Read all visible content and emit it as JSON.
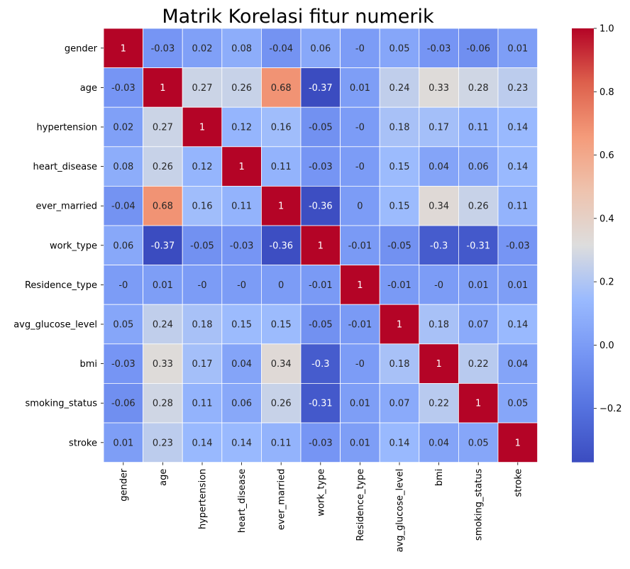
{
  "chart_data": {
    "type": "heatmap",
    "title": "Matrik Korelasi fitur numerik",
    "xlabel": "",
    "ylabel": "",
    "labels": [
      "gender",
      "age",
      "hypertension",
      "heart_disease",
      "ever_married",
      "work_type",
      "Residence_type",
      "avg_glucose_level",
      "bmi",
      "smoking_status",
      "stroke"
    ],
    "matrix": [
      [
        1,
        -0.03,
        0.02,
        0.08,
        -0.04,
        0.06,
        0,
        0.05,
        -0.03,
        -0.06,
        0.01
      ],
      [
        -0.03,
        1,
        0.27,
        0.26,
        0.68,
        -0.37,
        0.01,
        0.24,
        0.33,
        0.28,
        0.23
      ],
      [
        0.02,
        0.27,
        1,
        0.12,
        0.16,
        -0.05,
        0,
        0.18,
        0.17,
        0.11,
        0.14
      ],
      [
        0.08,
        0.26,
        0.12,
        1,
        0.11,
        -0.03,
        0,
        0.15,
        0.04,
        0.06,
        0.14
      ],
      [
        -0.04,
        0.68,
        0.16,
        0.11,
        1,
        -0.36,
        0,
        0.15,
        0.34,
        0.26,
        0.11
      ],
      [
        0.06,
        -0.37,
        -0.05,
        -0.03,
        -0.36,
        1,
        -0.01,
        -0.05,
        -0.3,
        -0.31,
        -0.03
      ],
      [
        0,
        0.01,
        0,
        0,
        0,
        -0.01,
        1,
        -0.01,
        0,
        0.01,
        0.01
      ],
      [
        0.05,
        0.24,
        0.18,
        0.15,
        0.15,
        -0.05,
        -0.01,
        1,
        0.18,
        0.07,
        0.14
      ],
      [
        -0.03,
        0.33,
        0.17,
        0.04,
        0.34,
        -0.3,
        0,
        0.18,
        1,
        0.22,
        0.04
      ],
      [
        -0.06,
        0.28,
        0.11,
        0.06,
        0.26,
        -0.31,
        0.01,
        0.07,
        0.22,
        1,
        0.05
      ],
      [
        0.01,
        0.23,
        0.14,
        0.14,
        0.11,
        -0.03,
        0.01,
        0.14,
        0.04,
        0.05,
        1
      ]
    ],
    "display_labels": [
      [
        "1",
        "-0.03",
        "0.02",
        "0.08",
        "-0.04",
        "0.06",
        "-0",
        "0.05",
        "-0.03",
        "-0.06",
        "0.01"
      ],
      [
        "-0.03",
        "1",
        "0.27",
        "0.26",
        "0.68",
        "-0.37",
        "0.01",
        "0.24",
        "0.33",
        "0.28",
        "0.23"
      ],
      [
        "0.02",
        "0.27",
        "1",
        "0.12",
        "0.16",
        "-0.05",
        "-0",
        "0.18",
        "0.17",
        "0.11",
        "0.14"
      ],
      [
        "0.08",
        "0.26",
        "0.12",
        "1",
        "0.11",
        "-0.03",
        "-0",
        "0.15",
        "0.04",
        "0.06",
        "0.14"
      ],
      [
        "-0.04",
        "0.68",
        "0.16",
        "0.11",
        "1",
        "-0.36",
        "0",
        "0.15",
        "0.34",
        "0.26",
        "0.11"
      ],
      [
        "0.06",
        "-0.37",
        "-0.05",
        "-0.03",
        "-0.36",
        "1",
        "-0.01",
        "-0.05",
        "-0.3",
        "-0.31",
        "-0.03"
      ],
      [
        "-0",
        "0.01",
        "-0",
        "-0",
        "0",
        "-0.01",
        "1",
        "-0.01",
        "-0",
        "0.01",
        "0.01"
      ],
      [
        "0.05",
        "0.24",
        "0.18",
        "0.15",
        "0.15",
        "-0.05",
        "-0.01",
        "1",
        "0.18",
        "0.07",
        "0.14"
      ],
      [
        "-0.03",
        "0.33",
        "0.17",
        "0.04",
        "0.34",
        "-0.3",
        "-0",
        "0.18",
        "1",
        "0.22",
        "0.04"
      ],
      [
        "-0.06",
        "0.28",
        "0.11",
        "0.06",
        "0.26",
        "-0.31",
        "0.01",
        "0.07",
        "0.22",
        "1",
        "0.05"
      ],
      [
        "0.01",
        "0.23",
        "0.14",
        "0.14",
        "0.11",
        "-0.03",
        "0.01",
        "0.14",
        "0.04",
        "0.05",
        "1"
      ]
    ],
    "colormap": "coolwarm",
    "vmin": -0.37,
    "vmax": 1,
    "colorbar_ticks": [
      1.0,
      0.8,
      0.6,
      0.4,
      0.2,
      0.0,
      -0.2
    ],
    "colorbar_tick_labels": [
      "1.0",
      "0.8",
      "0.6",
      "0.4",
      "0.2",
      "0.0",
      "−0.2"
    ],
    "grid": true,
    "colors": {
      "cmap_low": "#3b4cc0",
      "cmap_mid": "#dddddd",
      "cmap_high": "#b40426",
      "gridline": "#ffffff"
    }
  }
}
